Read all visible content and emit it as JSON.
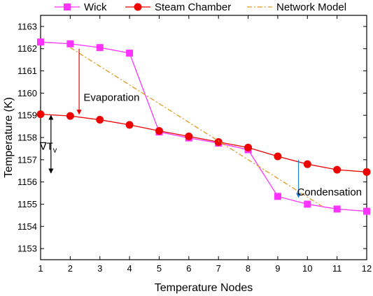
{
  "chart_data": {
    "type": "line",
    "xlabel": "Temperature Nodes",
    "ylabel": "Temperature (K)",
    "xlim": [
      1,
      12
    ],
    "ylim": [
      1152.5,
      1163.5
    ],
    "xticks": [
      1,
      2,
      3,
      4,
      5,
      6,
      7,
      8,
      9,
      10,
      11,
      12
    ],
    "yticks": [
      1153,
      1154,
      1155,
      1156,
      1157,
      1158,
      1159,
      1160,
      1161,
      1162,
      1163
    ],
    "grid": false,
    "legend_position": "top",
    "series": [
      {
        "name": "Wick",
        "color": "#ff33ff",
        "marker": "square",
        "line_style": "solid",
        "x": [
          1,
          2,
          3,
          4,
          5,
          6,
          7,
          8,
          9,
          10,
          11,
          12
        ],
        "y": [
          1162.3,
          1162.22,
          1162.05,
          1161.8,
          1158.25,
          1157.98,
          1157.75,
          1157.45,
          1155.35,
          1155.0,
          1154.78,
          1154.68
        ]
      },
      {
        "name": "Steam Chamber",
        "color": "#ee0000",
        "marker": "circle",
        "line_style": "solid",
        "x": [
          1,
          2,
          3,
          4,
          5,
          6,
          7,
          8,
          9,
          10,
          11,
          12
        ],
        "y": [
          1159.05,
          1158.97,
          1158.8,
          1158.57,
          1158.3,
          1158.05,
          1157.8,
          1157.55,
          1157.15,
          1156.8,
          1156.55,
          1156.45
        ]
      },
      {
        "name": "Network Model",
        "color": "#e39a1e",
        "marker": "none",
        "line_style": "dash-dot",
        "x": [
          2,
          10.5
        ],
        "y": [
          1162.05,
          1154.9
        ]
      }
    ],
    "annotations": [
      {
        "text": "Evaporation",
        "x": 2.45,
        "y": 1159.8,
        "align": "start"
      },
      {
        "text": "Condensation",
        "x": 9.65,
        "y": 1155.55,
        "align": "start"
      },
      {
        "text": "∇T",
        "subscript": "v",
        "x": 1.55,
        "y": 1157.6,
        "align": "end"
      }
    ],
    "arrows": [
      {
        "color": "#ee0000",
        "x": 2.3,
        "from": 1162.0,
        "to": 1159.05,
        "heads": "end"
      },
      {
        "color": "#000000",
        "x": 1.35,
        "from": 1159.0,
        "to": 1156.4,
        "heads": "both"
      },
      {
        "color": "#1e7fd6",
        "x": 9.7,
        "from": 1157.0,
        "to": 1155.3,
        "heads": "end"
      }
    ]
  }
}
